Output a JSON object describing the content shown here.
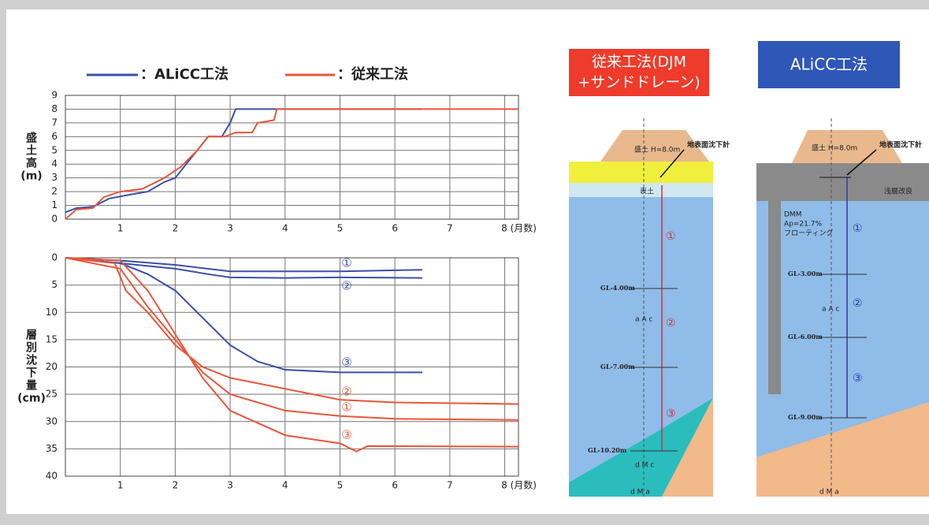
{
  "chart_data": [
    {
      "type": "line",
      "ylabel": [
        "盛",
        "土",
        "高",
        "(m)"
      ],
      "xlim": [
        0,
        8.25
      ],
      "ylim": [
        0,
        9
      ],
      "xticks": [
        1,
        2,
        3,
        4,
        5,
        6,
        7,
        {
          "value": 8,
          "label": "8 (月数)"
        }
      ],
      "yticks": [
        0,
        1,
        2,
        3,
        4,
        5,
        6,
        7,
        8,
        9
      ],
      "grid": true,
      "series": [
        {
          "name": "：ALiCC工法",
          "color": "#3b4fa8",
          "x": [
            0,
            0.2,
            0.5,
            0.8,
            1.2,
            1.5,
            1.8,
            2.0,
            2.2,
            2.4,
            2.6,
            2.85,
            3.0,
            3.1,
            6.5
          ],
          "values": [
            0.5,
            0.8,
            0.9,
            1.5,
            1.8,
            2.0,
            2.7,
            3.0,
            4.0,
            5.0,
            6.0,
            6.0,
            7.0,
            8.0,
            8.0
          ]
        },
        {
          "name": "：従来工法",
          "color": "#e8553a",
          "x": [
            0,
            0.2,
            0.5,
            0.7,
            1.0,
            1.4,
            1.8,
            2.1,
            2.4,
            2.6,
            2.9,
            3.1,
            3.4,
            3.5,
            3.8,
            3.85,
            8.25
          ],
          "values": [
            0,
            0.7,
            0.8,
            1.6,
            2.0,
            2.2,
            3.0,
            3.8,
            5.0,
            6.0,
            6.0,
            6.3,
            6.3,
            7.0,
            7.2,
            8.0,
            8.0
          ]
        }
      ]
    },
    {
      "type": "line",
      "ylabel": [
        "層",
        "別",
        "沈",
        "下",
        "量",
        "(cm)"
      ],
      "xlim": [
        0,
        8.25
      ],
      "ylim": [
        40,
        0
      ],
      "xticks": [
        1,
        2,
        3,
        4,
        5,
        6,
        7,
        {
          "value": 8,
          "label": "8 (月数)"
        }
      ],
      "yticks": [
        0,
        5,
        10,
        15,
        20,
        25,
        30,
        35,
        40
      ],
      "grid": true,
      "series": [
        {
          "name": "①",
          "color": "#3b4fa8",
          "x": [
            0,
            1,
            2,
            3,
            4,
            5,
            6.5
          ],
          "values": [
            0,
            0.5,
            1.3,
            2.5,
            2.5,
            2.5,
            2.2
          ]
        },
        {
          "name": "②",
          "color": "#3b4fa8",
          "x": [
            0,
            1,
            2,
            2.6,
            3,
            4,
            5,
            6.5
          ],
          "values": [
            0,
            1,
            2,
            3,
            3.6,
            3.7,
            3.6,
            3.7
          ]
        },
        {
          "name": "③",
          "color": "#3b4fa8",
          "x": [
            0,
            1,
            1.5,
            2,
            2.5,
            3,
            3.5,
            4,
            5,
            6.5
          ],
          "values": [
            0,
            1,
            3,
            6,
            11,
            16,
            19,
            20.5,
            21,
            21
          ]
        },
        {
          "name": "②",
          "color": "#e8553a",
          "x": [
            0,
            0.9,
            1.1,
            1.5,
            2,
            2.5,
            3,
            4,
            5,
            6,
            8.25
          ],
          "values": [
            0,
            1,
            6,
            10,
            16,
            20,
            22,
            24,
            26,
            26.5,
            26.8
          ]
        },
        {
          "name": "①",
          "color": "#e8553a",
          "x": [
            0,
            1,
            1.5,
            2,
            2.5,
            3,
            4,
            5,
            6,
            8.25
          ],
          "values": [
            0,
            2,
            9,
            15,
            21,
            25,
            28,
            29,
            29.5,
            29.7
          ]
        },
        {
          "name": "③",
          "color": "#e8553a",
          "x": [
            0,
            1,
            1.5,
            2,
            2.5,
            3,
            4,
            5,
            5.3,
            5.5,
            8.25
          ],
          "values": [
            0,
            0.5,
            6,
            14,
            22,
            28,
            32.5,
            34,
            35.5,
            34.5,
            34.6
          ]
        }
      ]
    }
  ],
  "diagrams": [
    {
      "title": [
        "従来工法(DJM",
        "+サンドドレーン)"
      ],
      "texts": [
        "盛土 H=8.0m",
        "地表面沈下計",
        "表土",
        "GL-4.00m",
        "a A c",
        "GL-7.00m",
        "GL-10.20m",
        "d M c",
        "d M a",
        "①",
        "②",
        "③"
      ]
    },
    {
      "title": [
        "ALiCC工法"
      ],
      "texts": [
        "盛土 H=8.0m",
        "地表面沈下計",
        "浅層改良",
        "DMM",
        "Ap=21.7%",
        "フローティング",
        "GL-3.00m",
        "a A c",
        "GL-6.00m",
        "GL-9.00m",
        "①",
        "②",
        "③",
        "d M a"
      ]
    }
  ]
}
